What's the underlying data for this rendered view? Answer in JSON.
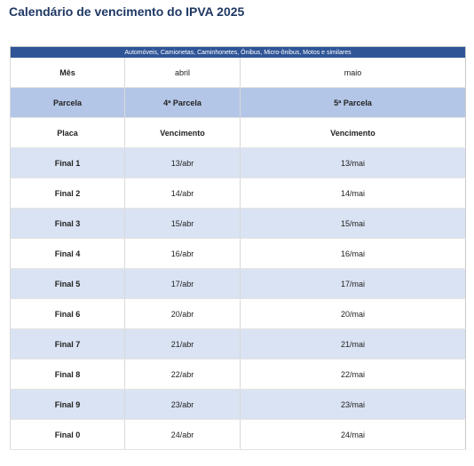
{
  "header": {
    "title": "Calendário de vencimento do IPVA 2025"
  },
  "table": {
    "caption": "Automóveis, Camionetas, Caminhonetes, Ônibus, Micro-ônibus, Motos e similares",
    "rows": [
      [
        "Mês",
        "abril",
        "maio"
      ],
      [
        "Parcela",
        "4ª Parcela",
        "5ª Parcela"
      ],
      [
        "Placa",
        "Vencimento",
        "Vencimento"
      ],
      [
        "Final 1",
        "13/abr",
        "13/mai"
      ],
      [
        "Final 2",
        "14/abr",
        "14/mai"
      ],
      [
        "Final 3",
        "15/abr",
        "15/mai"
      ],
      [
        "Final 4",
        "16/abr",
        "16/mai"
      ],
      [
        "Final 5",
        "17/abr",
        "17/mai"
      ],
      [
        "Final 6",
        "20/abr",
        "20/mai"
      ],
      [
        "Final 7",
        "21/abr",
        "21/mai"
      ],
      [
        "Final 8",
        "22/abr",
        "22/mai"
      ],
      [
        "Final 9",
        "23/abr",
        "23/mai"
      ],
      [
        "Final 0",
        "24/abr",
        "24/mai"
      ]
    ]
  }
}
